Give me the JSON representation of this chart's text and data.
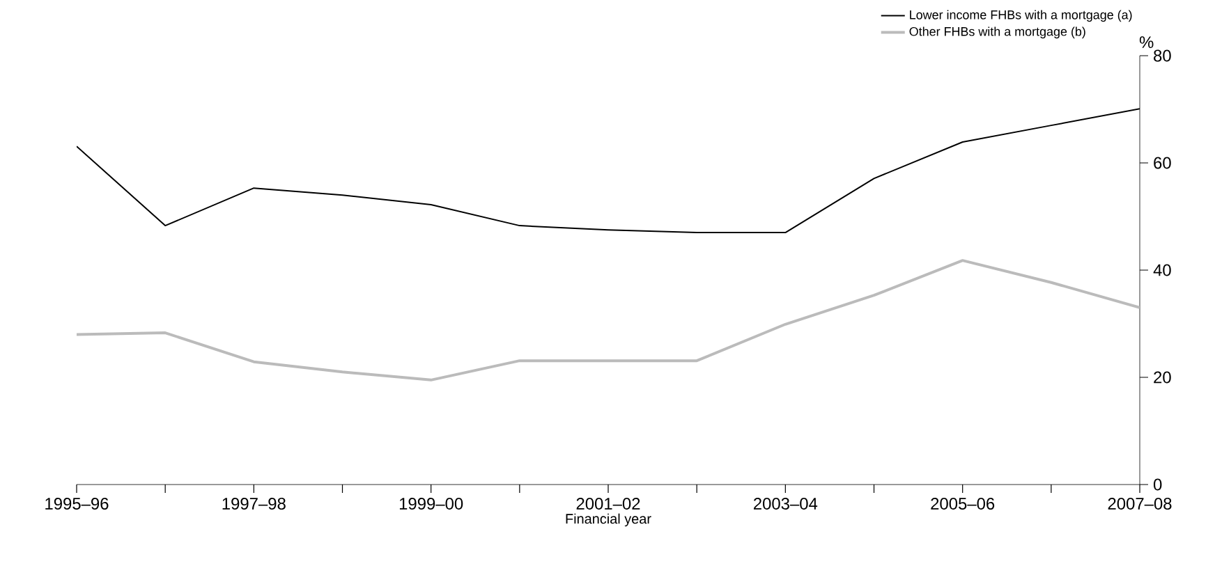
{
  "chart_data": {
    "type": "line",
    "xlabel": "Financial year",
    "ylabel": "%",
    "categories": [
      "1995–96",
      null,
      "1997–98",
      null,
      "1999–00",
      null,
      "2001–02",
      null,
      "2003–04",
      null,
      "2005–06",
      null,
      "2007–08"
    ],
    "ylim": [
      0,
      80
    ],
    "yticks": [
      0,
      20,
      40,
      60,
      80
    ],
    "grid": false,
    "legend": "top right",
    "marker": "none",
    "line_style": "solid",
    "series": [
      {
        "name": "Lower income FHBs with a mortgage (a)",
        "color": "#000000",
        "values": [
          63.1,
          48.3,
          55.3,
          54,
          52.2,
          48.3,
          47.5,
          47,
          47,
          57.1,
          63.9,
          67,
          70.1
        ]
      },
      {
        "name": "Other FHBs with a mortgage (b)",
        "color": "#bbbbbb",
        "values": [
          28,
          28.3,
          22.9,
          21,
          19.5,
          23.1,
          23.1,
          23.1,
          29.9,
          35.3,
          41.8,
          37.7,
          33
        ]
      }
    ]
  }
}
